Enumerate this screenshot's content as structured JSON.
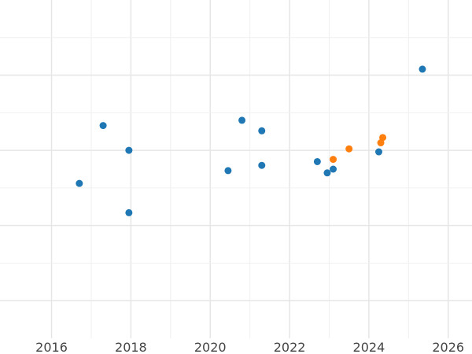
{
  "chart_data": {
    "type": "scatter",
    "title": "",
    "xlabel": "",
    "ylabel": "",
    "x_ticks": [
      "2016",
      "2018",
      "2020",
      "2022",
      "2024",
      "2026"
    ],
    "xlim": [
      2014.7,
      2026.6
    ],
    "ylim": [
      0,
      4.5
    ],
    "grid": true,
    "legend": "none",
    "series": [
      {
        "color": "#1f77b4",
        "points": [
          {
            "x": 2016.7,
            "y": 2.06
          },
          {
            "x": 2017.3,
            "y": 2.83
          },
          {
            "x": 2017.95,
            "y": 2.5
          },
          {
            "x": 2017.95,
            "y": 1.67
          },
          {
            "x": 2020.45,
            "y": 2.23
          },
          {
            "x": 2020.8,
            "y": 2.9
          },
          {
            "x": 2021.3,
            "y": 2.76
          },
          {
            "x": 2021.3,
            "y": 2.3
          },
          {
            "x": 2022.7,
            "y": 2.35
          },
          {
            "x": 2022.95,
            "y": 2.2
          },
          {
            "x": 2023.1,
            "y": 2.25
          },
          {
            "x": 2024.25,
            "y": 2.48
          },
          {
            "x": 2025.35,
            "y": 3.58
          }
        ]
      },
      {
        "color": "#ff7f0e",
        "points": [
          {
            "x": 2023.1,
            "y": 2.38
          },
          {
            "x": 2023.5,
            "y": 2.52
          },
          {
            "x": 2024.3,
            "y": 2.6
          },
          {
            "x": 2024.35,
            "y": 2.67
          }
        ]
      }
    ]
  }
}
